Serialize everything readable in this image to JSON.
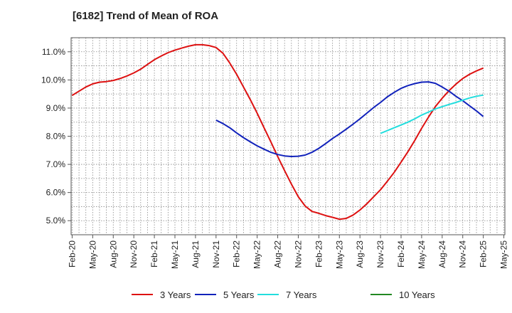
{
  "chart_data": {
    "type": "line",
    "title": "[6182]  Trend of Mean of ROA",
    "xlabel": "",
    "ylabel": "",
    "x_tick_labels": [
      "Feb-20",
      "May-20",
      "Aug-20",
      "Nov-20",
      "Feb-21",
      "May-21",
      "Aug-21",
      "Nov-21",
      "Feb-22",
      "May-22",
      "Aug-22",
      "Nov-22",
      "Feb-23",
      "May-23",
      "Aug-23",
      "Nov-23",
      "Feb-24",
      "May-24",
      "Aug-24",
      "Nov-24",
      "Feb-25",
      "May-25"
    ],
    "y_ticks": [
      5.0,
      6.0,
      7.0,
      8.0,
      9.0,
      10.0,
      11.0
    ],
    "y_tick_labels": [
      "5.0%",
      "6.0%",
      "7.0%",
      "8.0%",
      "9.0%",
      "10.0%",
      "11.0%"
    ],
    "ylim": [
      4.5,
      11.5
    ],
    "grid": true,
    "legend_position": "bottom",
    "series": [
      {
        "name": "3 Years",
        "color": "#dd1111",
        "points": [
          [
            "Feb-20",
            9.45
          ],
          [
            "Mar-20",
            9.6
          ],
          [
            "Apr-20",
            9.75
          ],
          [
            "May-20",
            9.86
          ],
          [
            "Jun-20",
            9.92
          ],
          [
            "Jul-20",
            9.94
          ],
          [
            "Aug-20",
            9.98
          ],
          [
            "Sep-20",
            10.05
          ],
          [
            "Oct-20",
            10.14
          ],
          [
            "Nov-20",
            10.25
          ],
          [
            "Dec-20",
            10.38
          ],
          [
            "Jan-21",
            10.55
          ],
          [
            "Feb-21",
            10.72
          ],
          [
            "Mar-21",
            10.85
          ],
          [
            "Apr-21",
            10.97
          ],
          [
            "May-21",
            11.06
          ],
          [
            "Jun-21",
            11.13
          ],
          [
            "Jul-21",
            11.2
          ],
          [
            "Aug-21",
            11.25
          ],
          [
            "Sep-21",
            11.25
          ],
          [
            "Oct-21",
            11.22
          ],
          [
            "Nov-21",
            11.15
          ],
          [
            "Dec-21",
            10.95
          ],
          [
            "Jan-22",
            10.6
          ],
          [
            "Feb-22",
            10.2
          ],
          [
            "Mar-22",
            9.75
          ],
          [
            "Apr-22",
            9.3
          ],
          [
            "May-22",
            8.82
          ],
          [
            "Jun-22",
            8.3
          ],
          [
            "Jul-22",
            7.8
          ],
          [
            "Aug-22",
            7.28
          ],
          [
            "Sep-22",
            6.78
          ],
          [
            "Oct-22",
            6.3
          ],
          [
            "Nov-22",
            5.85
          ],
          [
            "Dec-22",
            5.52
          ],
          [
            "Jan-23",
            5.33
          ],
          [
            "Feb-23",
            5.26
          ],
          [
            "Mar-23",
            5.18
          ],
          [
            "Apr-23",
            5.12
          ],
          [
            "May-23",
            5.05
          ],
          [
            "Jun-23",
            5.08
          ],
          [
            "Jul-23",
            5.2
          ],
          [
            "Aug-23",
            5.38
          ],
          [
            "Sep-23",
            5.6
          ],
          [
            "Oct-23",
            5.85
          ],
          [
            "Nov-23",
            6.1
          ],
          [
            "Dec-23",
            6.4
          ],
          [
            "Jan-24",
            6.72
          ],
          [
            "Feb-24",
            7.08
          ],
          [
            "Mar-24",
            7.45
          ],
          [
            "Apr-24",
            7.85
          ],
          [
            "May-24",
            8.28
          ],
          [
            "Jun-24",
            8.68
          ],
          [
            "Jul-24",
            9.05
          ],
          [
            "Aug-24",
            9.35
          ],
          [
            "Sep-24",
            9.62
          ],
          [
            "Oct-24",
            9.85
          ],
          [
            "Nov-24",
            10.05
          ],
          [
            "Dec-24",
            10.2
          ],
          [
            "Jan-25",
            10.32
          ],
          [
            "Feb-25",
            10.42
          ]
        ]
      },
      {
        "name": "5 Years",
        "color": "#1122bb",
        "points": [
          [
            "Nov-21",
            8.57
          ],
          [
            "Dec-21",
            8.45
          ],
          [
            "Jan-22",
            8.3
          ],
          [
            "Feb-22",
            8.12
          ],
          [
            "Mar-22",
            7.95
          ],
          [
            "Apr-22",
            7.8
          ],
          [
            "May-22",
            7.66
          ],
          [
            "Jun-22",
            7.54
          ],
          [
            "Jul-22",
            7.43
          ],
          [
            "Aug-22",
            7.35
          ],
          [
            "Sep-22",
            7.3
          ],
          [
            "Oct-22",
            7.28
          ],
          [
            "Nov-22",
            7.29
          ],
          [
            "Dec-22",
            7.33
          ],
          [
            "Jan-23",
            7.43
          ],
          [
            "Feb-23",
            7.57
          ],
          [
            "Mar-23",
            7.74
          ],
          [
            "Apr-23",
            7.92
          ],
          [
            "May-23",
            8.08
          ],
          [
            "Jun-23",
            8.25
          ],
          [
            "Jul-23",
            8.43
          ],
          [
            "Aug-23",
            8.62
          ],
          [
            "Sep-23",
            8.82
          ],
          [
            "Oct-23",
            9.02
          ],
          [
            "Nov-23",
            9.2
          ],
          [
            "Dec-23",
            9.4
          ],
          [
            "Jan-24",
            9.56
          ],
          [
            "Feb-24",
            9.7
          ],
          [
            "Mar-24",
            9.8
          ],
          [
            "Apr-24",
            9.87
          ],
          [
            "May-24",
            9.92
          ],
          [
            "Jun-24",
            9.93
          ],
          [
            "Jul-24",
            9.88
          ],
          [
            "Aug-24",
            9.75
          ],
          [
            "Sep-24",
            9.6
          ],
          [
            "Oct-24",
            9.42
          ],
          [
            "Nov-24",
            9.26
          ],
          [
            "Dec-24",
            9.08
          ],
          [
            "Jan-25",
            8.9
          ],
          [
            "Feb-25",
            8.7
          ]
        ]
      },
      {
        "name": "7 Years",
        "color": "#22dddd",
        "points": [
          [
            "Nov-23",
            8.1
          ],
          [
            "Dec-23",
            8.2
          ],
          [
            "Jan-24",
            8.3
          ],
          [
            "Feb-24",
            8.4
          ],
          [
            "Mar-24",
            8.5
          ],
          [
            "Apr-24",
            8.62
          ],
          [
            "May-24",
            8.75
          ],
          [
            "Jun-24",
            8.86
          ],
          [
            "Jul-24",
            8.97
          ],
          [
            "Aug-24",
            9.05
          ],
          [
            "Sep-24",
            9.13
          ],
          [
            "Oct-24",
            9.2
          ],
          [
            "Nov-24",
            9.28
          ],
          [
            "Dec-24",
            9.36
          ],
          [
            "Jan-25",
            9.42
          ],
          [
            "Feb-25",
            9.46
          ]
        ]
      },
      {
        "name": "10 Years",
        "color": "#228822",
        "points": []
      }
    ]
  }
}
